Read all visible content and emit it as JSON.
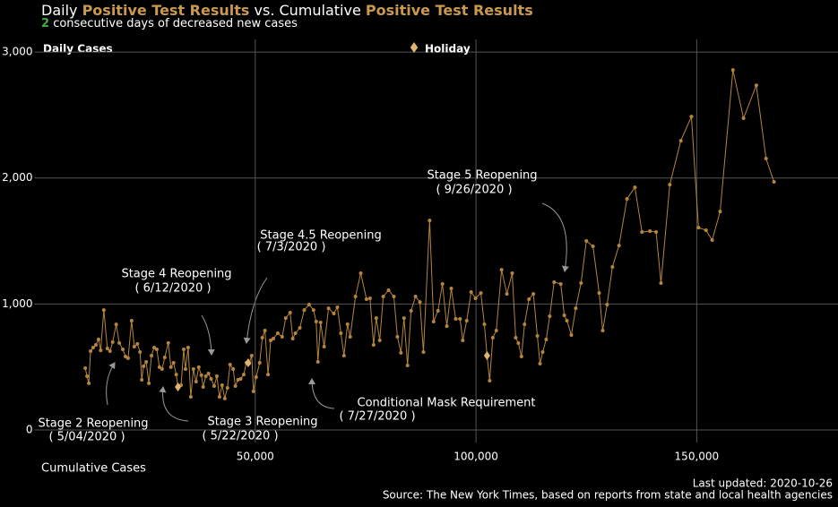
{
  "chart_data": {
    "type": "line",
    "title_parts": [
      "Daily ",
      "Positive Test Results",
      " vs. Cumulative ",
      "Positive Test Results"
    ],
    "subtitle_count": 2,
    "subtitle_text": "consecutive days of decreased new cases",
    "y_label": "Daily Cases",
    "x_label": "Cumulative Cases",
    "updated": "Last updated: 2020-10-26",
    "source": "Source: The New York Times, based on reports from state and local health agencies",
    "color": "#b5853f",
    "accent_color": "#c8994e",
    "count_color": "#3cb043",
    "grid": true,
    "xlim": [
      0,
      182000
    ],
    "ylim": [
      -100,
      3100
    ],
    "xticks": [
      {
        "value": 50000,
        "label": "50,000"
      },
      {
        "value": 100000,
        "label": "100,000"
      },
      {
        "value": 150000,
        "label": "150,000"
      }
    ],
    "yticks": [
      0,
      {
        "value": 1000,
        "label": "1,000"
      },
      {
        "value": 2000,
        "label": "2,000"
      },
      {
        "value": 3000,
        "label": "3,000"
      }
    ],
    "x": [
      11500,
      11900,
      12300,
      12700,
      13300,
      13900,
      14500,
      15000,
      15700,
      16500,
      17100,
      17700,
      18500,
      19200,
      20000,
      20600,
      21200,
      22000,
      22600,
      23300,
      23900,
      24300,
      24700,
      25300,
      25900,
      26500,
      27100,
      27700,
      28300,
      28900,
      29500,
      30300,
      30900,
      31500,
      32100,
      32500,
      33200,
      33800,
      34200,
      34800,
      35400,
      36000,
      36600,
      37200,
      37800,
      38200,
      38800,
      39400,
      40000,
      40700,
      41300,
      41900,
      42500,
      43100,
      43700,
      44300,
      45000,
      45500,
      46100,
      46700,
      47400,
      48000,
      48600,
      49200,
      49600,
      50200,
      51000,
      51600,
      52200,
      52900,
      53500,
      54100,
      55100,
      56100,
      56900,
      57900,
      58500,
      59100,
      60100,
      61100,
      62200,
      63200,
      63800,
      64200,
      64800,
      65600,
      66600,
      67800,
      68600,
      69400,
      70100,
      70900,
      71500,
      72700,
      73900,
      75200,
      76000,
      76800,
      77400,
      78200,
      79000,
      80200,
      81400,
      82200,
      83000,
      83700,
      84500,
      85300,
      86300,
      87300,
      88100,
      89500,
      90400,
      91400,
      92400,
      93400,
      94400,
      95400,
      96400,
      97000,
      97900,
      98900,
      99900,
      101100,
      101900,
      102500,
      103100,
      103800,
      104600,
      105800,
      107000,
      108200,
      109000,
      109600,
      110300,
      111000,
      112000,
      113000,
      113900,
      114500,
      115100,
      115900,
      116700,
      117700,
      119200,
      120000,
      120600,
      121600,
      122600,
      123800,
      125000,
      126500,
      127900,
      128700,
      129700,
      130900,
      132400,
      134200,
      136000,
      137600,
      139400,
      140800,
      141900,
      143900,
      146400,
      148800,
      150400,
      152100,
      153500,
      155300,
      158200,
      160600,
      163500,
      165700,
      167500
    ],
    "values": [
      490,
      426,
      370,
      625,
      654,
      675,
      718,
      632,
      952,
      647,
      625,
      697,
      838,
      690,
      640,
      583,
      569,
      867,
      661,
      683,
      618,
      398,
      505,
      540,
      370,
      590,
      654,
      640,
      498,
      483,
      576,
      690,
      498,
      533,
      440,
      341,
      355,
      640,
      483,
      654,
      263,
      483,
      384,
      498,
      434,
      341,
      426,
      448,
      405,
      348,
      426,
      263,
      355,
      249,
      334,
      519,
      483,
      348,
      398,
      405,
      440,
      533,
      526,
      590,
      306,
      419,
      533,
      732,
      789,
      440,
      711,
      725,
      768,
      739,
      888,
      931,
      725,
      768,
      810,
      952,
      995,
      952,
      860,
      540,
      853,
      661,
      966,
      924,
      974,
      768,
      590,
      839,
      739,
      1059,
      1244,
      1038,
      1045,
      675,
      888,
      711,
      1059,
      1109,
      1059,
      739,
      612,
      888,
      512,
      945,
      1059,
      1016,
      618,
      1663,
      860,
      945,
      1159,
      824,
      1123,
      881,
      881,
      711,
      867,
      1095,
      1045,
      1087,
      839,
      590,
      391,
      732,
      789,
      1272,
      1080,
      1244,
      732,
      689,
      583,
      839,
      1038,
      1080,
      746,
      526,
      618,
      718,
      903,
      1173,
      1159,
      910,
      867,
      753,
      966,
      1166,
      1500,
      1457,
      1087,
      789,
      995,
      1294,
      1464,
      1834,
      1926,
      1571,
      1578,
      1571,
      1166,
      1947,
      2296,
      2488,
      1606,
      1585,
      1507,
      1734,
      2857,
      2474,
      2736,
      2154,
      1969
    ],
    "holidays": {
      "name": "Holiday",
      "color": "#e0b574",
      "x": [
        32500,
        48400,
        102500
      ],
      "values": [
        341,
        533,
        590
      ]
    },
    "annotations": [
      {
        "text": "Stage 2 Reopening",
        "date": "( 5/04/2020 )"
      },
      {
        "text": "Stage 3 Reopening",
        "date": "( 5/22/2020 )"
      },
      {
        "text": "Stage 4 Reopening",
        "date": "( 6/12/2020 )"
      },
      {
        "text": "Stage 4.5 Reopening",
        "date": "( 7/3/2020 )"
      },
      {
        "text": "Conditional Mask Requirement",
        "date": "( 7/27/2020 )"
      },
      {
        "text": "Stage 5 Reopening",
        "date": "( 9/26/2020 )"
      }
    ]
  }
}
